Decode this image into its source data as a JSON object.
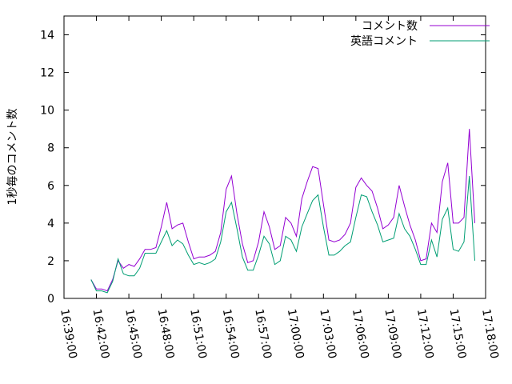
{
  "chart_data": {
    "type": "line",
    "ylabel": "1秒毎のコメント数",
    "x": [
      "16:41:30",
      "16:42:00",
      "16:42:30",
      "16:43:00",
      "16:43:30",
      "16:44:00",
      "16:44:30",
      "16:45:00",
      "16:45:30",
      "16:46:00",
      "16:46:30",
      "16:47:00",
      "16:47:30",
      "16:48:00",
      "16:48:30",
      "16:49:00",
      "16:49:30",
      "16:50:00",
      "16:50:30",
      "16:51:00",
      "16:51:30",
      "16:52:00",
      "16:52:30",
      "16:53:00",
      "16:53:30",
      "16:54:00",
      "16:54:30",
      "16:55:00",
      "16:55:30",
      "16:56:00",
      "16:56:30",
      "16:57:00",
      "16:57:30",
      "16:58:00",
      "16:58:30",
      "16:59:00",
      "16:59:30",
      "17:00:00",
      "17:00:30",
      "17:01:00",
      "17:01:30",
      "17:02:00",
      "17:02:30",
      "17:03:00",
      "17:03:30",
      "17:04:00",
      "17:04:30",
      "17:05:00",
      "17:05:30",
      "17:06:00",
      "17:06:30",
      "17:07:00",
      "17:07:30",
      "17:08:00",
      "17:08:30",
      "17:09:00",
      "17:09:30",
      "17:10:00",
      "17:10:30",
      "17:11:00",
      "17:11:30",
      "17:12:00",
      "17:12:30",
      "17:13:00",
      "17:13:30",
      "17:14:00",
      "17:14:30",
      "17:15:00",
      "17:15:30",
      "17:16:00",
      "17:16:30",
      "17:17:00"
    ],
    "series": [
      {
        "name": "コメント数",
        "color": "#9400d3",
        "values": [
          1.0,
          0.5,
          0.5,
          0.4,
          1.0,
          2.0,
          1.6,
          1.8,
          1.7,
          2.1,
          2.6,
          2.6,
          2.7,
          3.8,
          5.1,
          3.7,
          3.9,
          4.0,
          3.0,
          2.1,
          2.2,
          2.2,
          2.3,
          2.5,
          3.5,
          5.8,
          6.5,
          4.5,
          2.9,
          1.9,
          2.0,
          3.0,
          4.6,
          3.8,
          2.6,
          2.8,
          4.3,
          4.0,
          3.3,
          5.3,
          6.2,
          7.0,
          6.9,
          5.0,
          3.1,
          3.0,
          3.1,
          3.4,
          4.0,
          5.9,
          6.4,
          6.0,
          5.7,
          4.8,
          3.7,
          3.9,
          4.3,
          6.0,
          4.9,
          3.9,
          3.1,
          2.0,
          2.1,
          4.0,
          3.5,
          6.2,
          7.2,
          4.0,
          4.0,
          4.3,
          9.0,
          4.0
        ]
      },
      {
        "name": "英語コメント",
        "color": "#009e73",
        "values": [
          1.0,
          0.4,
          0.4,
          0.3,
          0.9,
          2.1,
          1.3,
          1.2,
          1.2,
          1.6,
          2.4,
          2.4,
          2.4,
          3.0,
          3.6,
          2.8,
          3.1,
          2.9,
          2.3,
          1.8,
          1.9,
          1.8,
          1.9,
          2.1,
          3.0,
          4.6,
          5.1,
          3.7,
          2.2,
          1.5,
          1.5,
          2.3,
          3.3,
          2.9,
          1.8,
          2.0,
          3.3,
          3.1,
          2.5,
          3.8,
          4.5,
          5.2,
          5.5,
          3.8,
          2.3,
          2.3,
          2.5,
          2.8,
          3.0,
          4.3,
          5.5,
          5.4,
          4.6,
          3.9,
          3.0,
          3.1,
          3.2,
          4.5,
          3.7,
          3.3,
          2.6,
          1.8,
          1.8,
          3.1,
          2.2,
          4.2,
          4.8,
          2.6,
          2.5,
          3.0,
          6.5,
          2.0
        ]
      }
    ],
    "xlim": [
      "16:39:00",
      "17:18:00"
    ],
    "xticks": [
      "16:39:00",
      "16:42:00",
      "16:45:00",
      "16:48:00",
      "16:51:00",
      "16:54:00",
      "16:57:00",
      "17:00:00",
      "17:03:00",
      "17:06:00",
      "17:09:00",
      "17:12:00",
      "17:15:00",
      "17:18:00"
    ],
    "ylim": [
      0,
      15
    ],
    "yticks": [
      0,
      2,
      4,
      6,
      8,
      10,
      12,
      14
    ],
    "legend": "top right"
  }
}
